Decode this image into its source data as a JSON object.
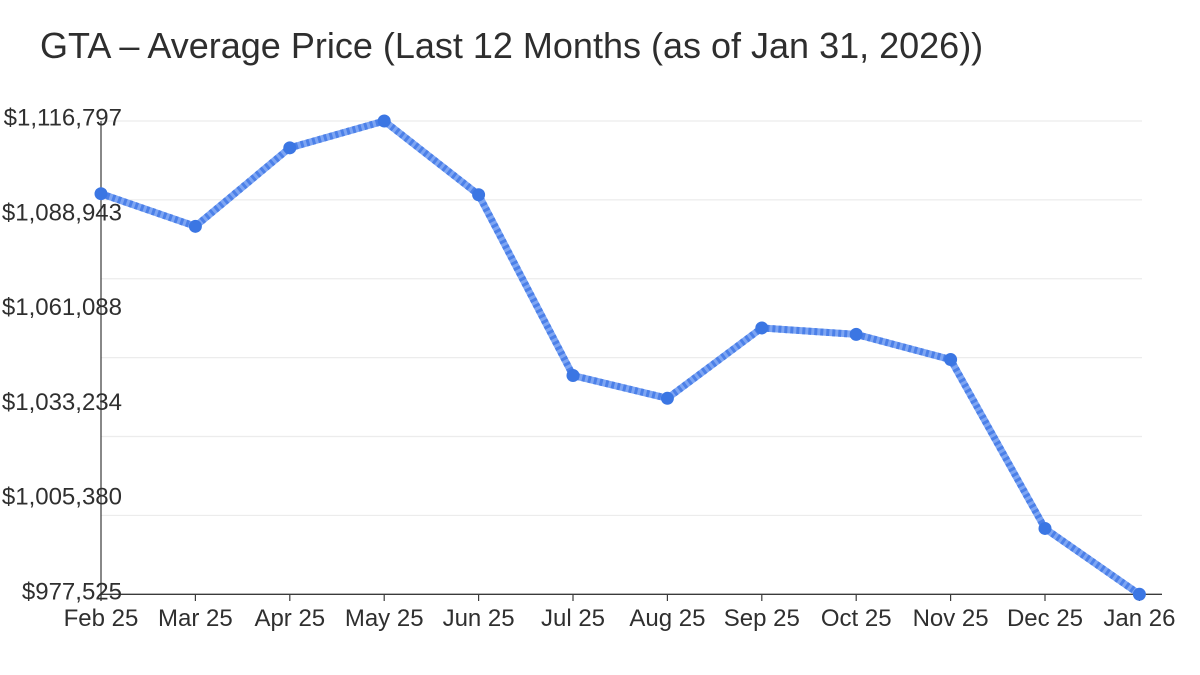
{
  "chart_data": {
    "type": "line",
    "title": "GTA – Average Price (Last 12 Months (as of Jan 31, 2026))",
    "categories": [
      "Feb 25",
      "Mar 25",
      "Apr 25",
      "May 25",
      "Jun 25",
      "Jul 25",
      "Aug 25",
      "Sep 25",
      "Oct 25",
      "Nov 25",
      "Dec 25",
      "Jan 26"
    ],
    "values": [
      1095400,
      1085800,
      1108900,
      1116797,
      1095100,
      1041900,
      1035200,
      1055900,
      1054000,
      1046600,
      996900,
      977525
    ],
    "y_tick_labels": [
      "$1,116,797",
      "$1,088,943",
      "$1,061,088",
      "$1,033,234",
      "$1,005,380",
      "$977,525"
    ],
    "ylim": [
      977525,
      1116797
    ],
    "xlabel": "",
    "ylabel": "",
    "legend": "none",
    "grid": "horizontal",
    "colors": {
      "line_base": "#7da5f3",
      "line_band": "#4c80e8",
      "point": "#3b76e3",
      "gridline": "#ececec",
      "axis": "#3a3a3a",
      "label_text": "#2f2f2f"
    }
  }
}
